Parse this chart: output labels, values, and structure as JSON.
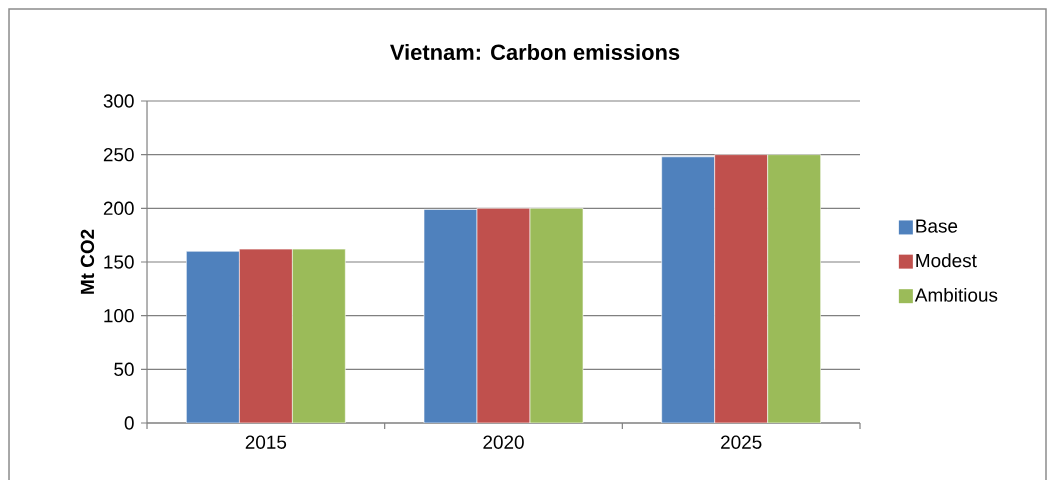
{
  "chart_data": {
    "type": "bar",
    "title": "Vietnam: Carbon emissions",
    "ylabel": "Mt CO2",
    "categories": [
      "2015",
      "2020",
      "2025"
    ],
    "series": [
      {
        "name": "Base",
        "color": "#4f81bd",
        "values": [
          160,
          199,
          248
        ]
      },
      {
        "name": "Modest",
        "color": "#c0504d",
        "values": [
          162,
          200,
          250
        ]
      },
      {
        "name": "Ambitious",
        "color": "#9bbb59",
        "values": [
          162,
          200,
          250
        ]
      }
    ],
    "ylim": [
      0,
      300
    ],
    "yticks": [
      0,
      50,
      100,
      150,
      200,
      250,
      300
    ],
    "grid": "y",
    "legend": "right"
  }
}
